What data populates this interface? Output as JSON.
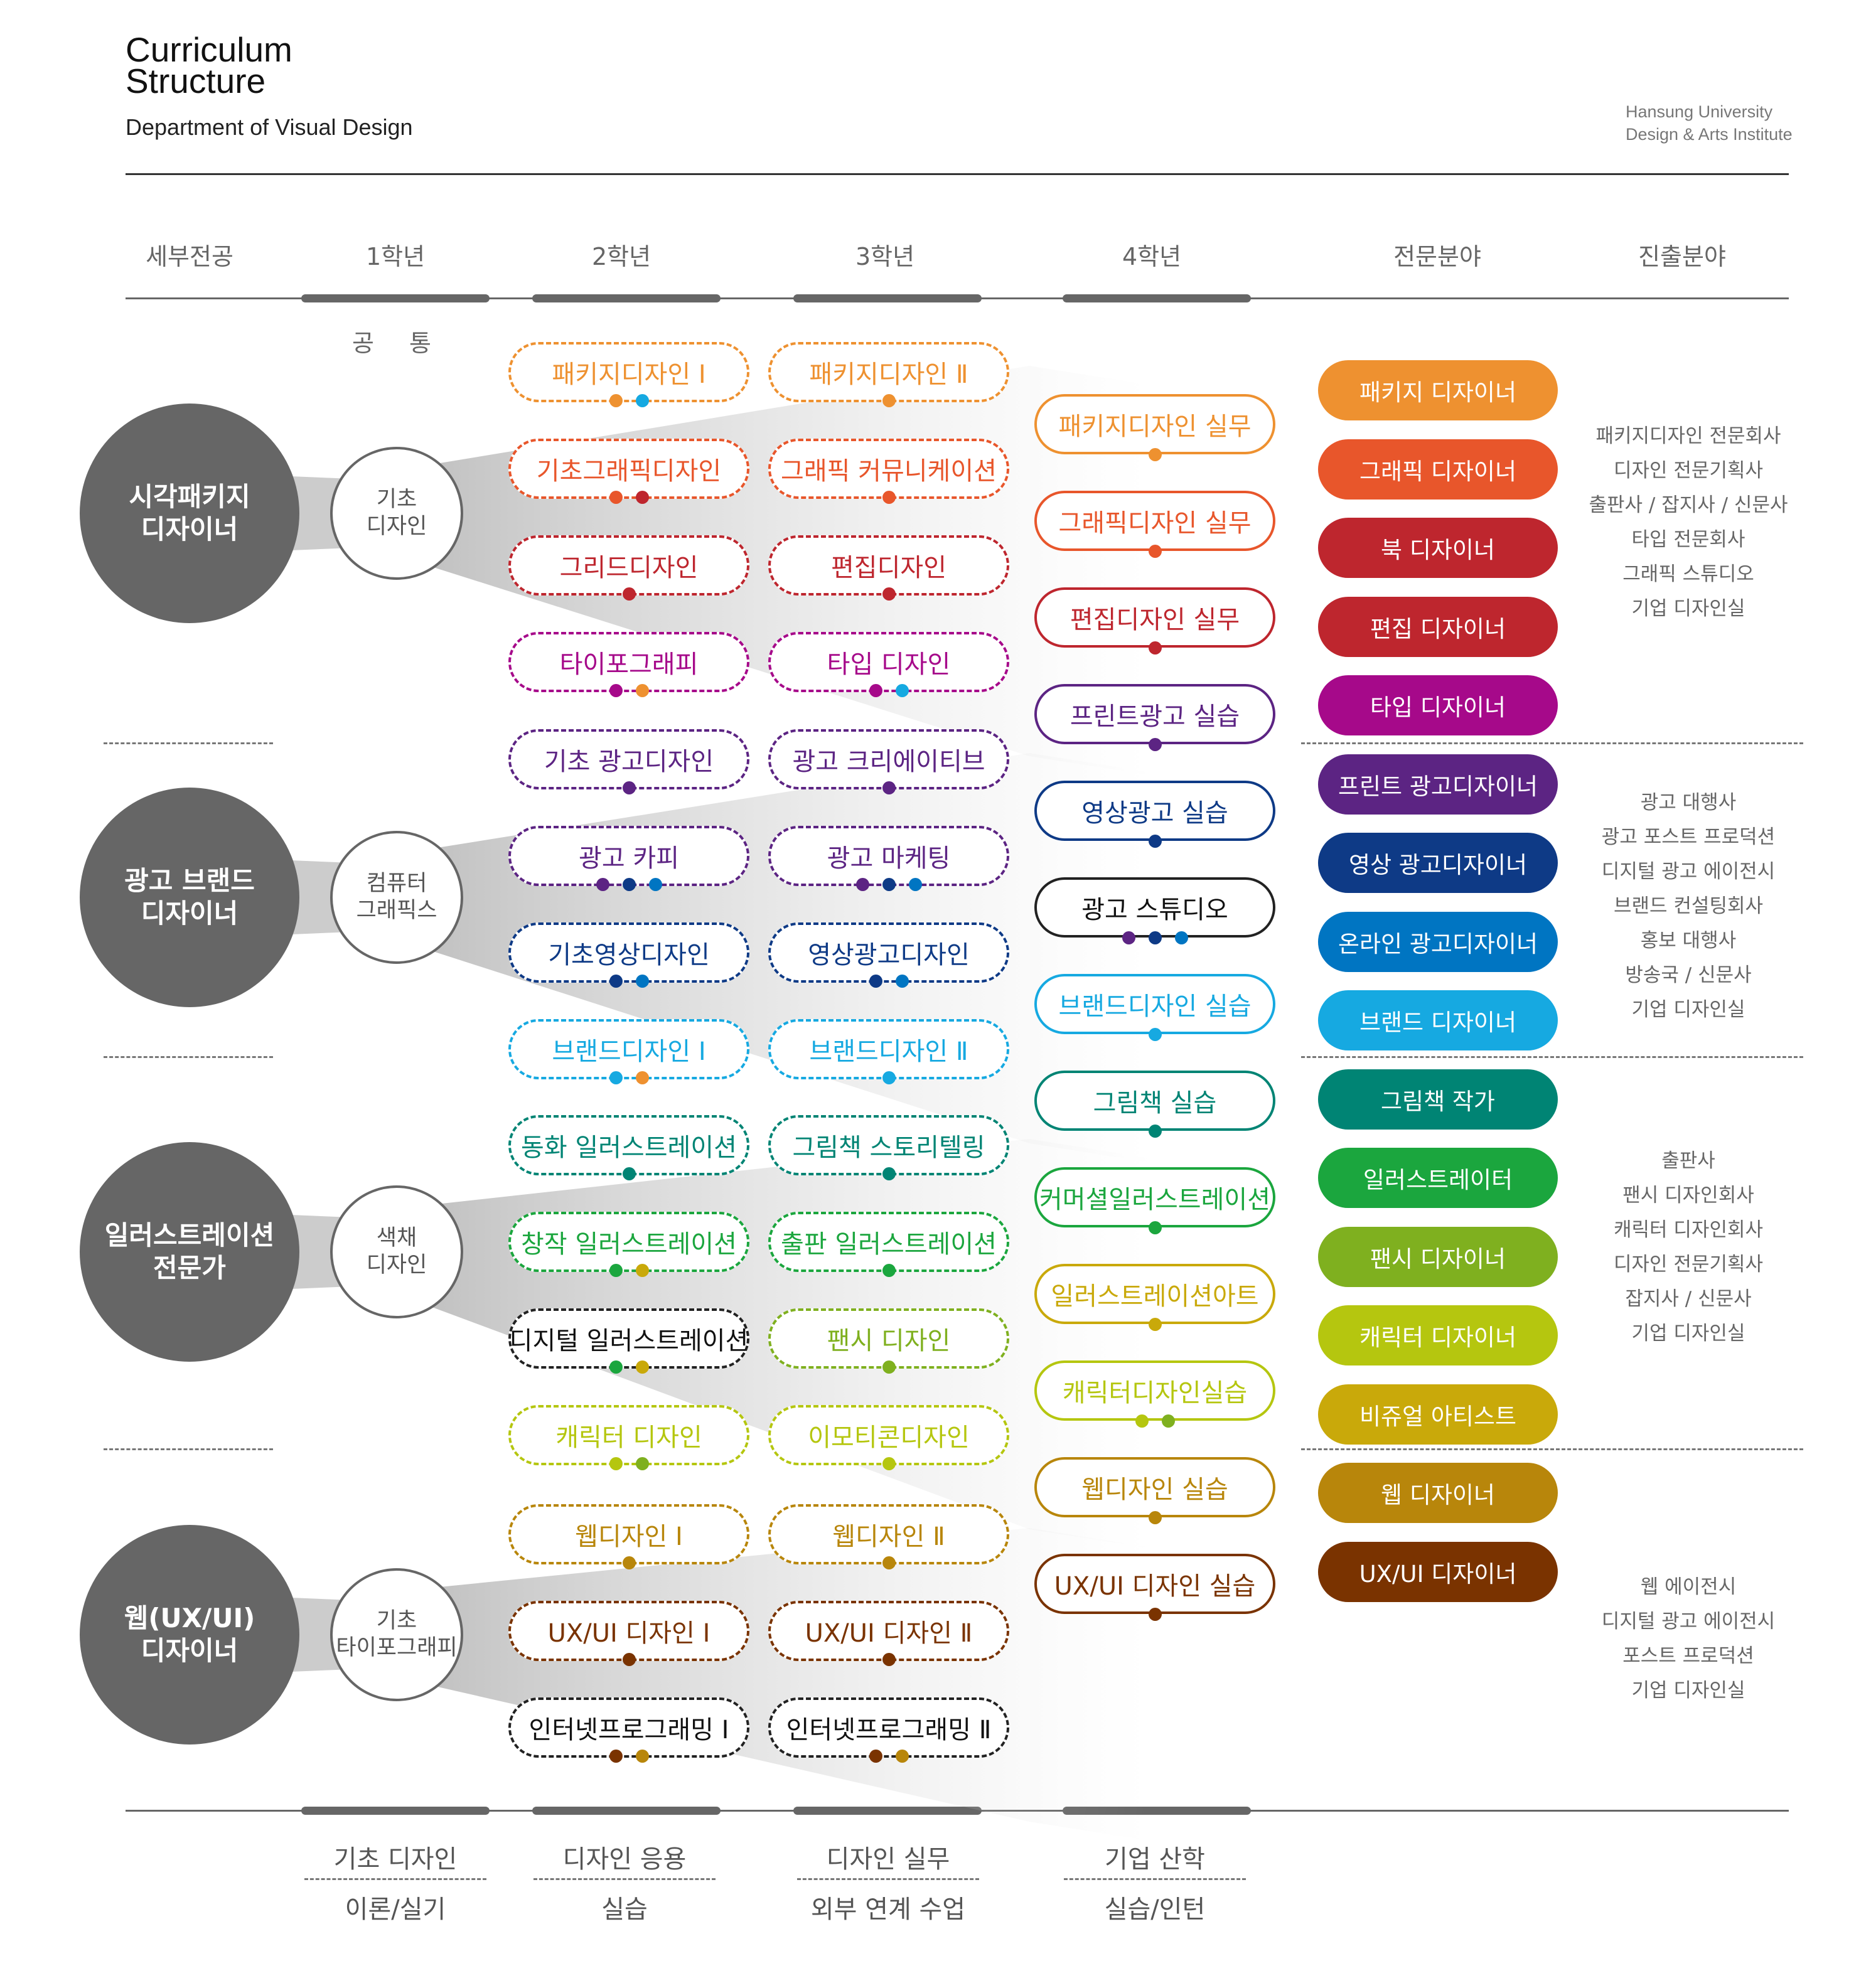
{
  "header": {
    "title_line1": "Curriculum",
    "title_line2": "Structure",
    "subtitle": "Department of Visual Design",
    "institution_line1": "Hansung University",
    "institution_line2": "Design & Arts Institute"
  },
  "columns": [
    "세부전공",
    "1학년",
    "2학년",
    "3학년",
    "4학년",
    "전문분야",
    "진출분야"
  ],
  "common_label": "공 통",
  "tracks": [
    {
      "name": "시각패키지\n디자이너",
      "base": "기초\n디자인",
      "year2": [
        {
          "label": "패키지디자인 Ⅰ",
          "color": "#EE9130",
          "dots": [
            "#EE9130",
            "#16A9E1"
          ]
        },
        {
          "label": "기초그래픽디자인",
          "color": "#E8562B",
          "dots": [
            "#E8562B",
            "#BE262E"
          ]
        },
        {
          "label": "그리드디자인",
          "color": "#BE262E",
          "dots": [
            "#BE262E"
          ]
        },
        {
          "label": "타이포그래피",
          "color": "#A6098A",
          "dots": [
            "#A6098A",
            "#EE9130"
          ]
        }
      ],
      "year3": [
        {
          "label": "패키지디자인 Ⅱ",
          "color": "#EE9130",
          "dots": [
            "#EE9130"
          ]
        },
        {
          "label": "그래픽 커뮤니케이션",
          "color": "#E8562B",
          "dots": [
            "#E8562B"
          ]
        },
        {
          "label": "편집디자인",
          "color": "#BE262E",
          "dots": [
            "#BE262E"
          ]
        },
        {
          "label": "타입 디자인",
          "color": "#A6098A",
          "dots": [
            "#A6098A",
            "#16A9E1"
          ]
        }
      ]
    },
    {
      "name": "광고 브랜드\n디자이너",
      "base": "컴퓨터\n그래픽스",
      "year2": [
        {
          "label": "기초 광고디자인",
          "color": "#5C2483",
          "dots": [
            "#5C2483"
          ]
        },
        {
          "label": "광고 카피",
          "color": "#5C2483",
          "dots": [
            "#5C2483",
            "#0E3A86",
            "#0075C2"
          ]
        },
        {
          "label": "기초영상디자인",
          "color": "#0E3A86",
          "dots": [
            "#0E3A86",
            "#0075C2"
          ]
        },
        {
          "label": "브랜드디자인 Ⅰ",
          "color": "#16A9E1",
          "dots": [
            "#16A9E1",
            "#EE9130"
          ]
        }
      ],
      "year3": [
        {
          "label": "광고 크리에이티브",
          "color": "#5C2483",
          "dots": [
            "#5C2483"
          ]
        },
        {
          "label": "광고 마케팅",
          "color": "#5C2483",
          "dots": [
            "#5C2483",
            "#0E3A86",
            "#0075C2"
          ]
        },
        {
          "label": "영상광고디자인",
          "color": "#0E3A86",
          "dots": [
            "#0E3A86",
            "#0075C2"
          ]
        },
        {
          "label": "브랜드디자인 Ⅱ",
          "color": "#16A9E1",
          "dots": [
            "#16A9E1"
          ]
        }
      ]
    },
    {
      "name": "일러스트레이션\n전문가",
      "base": "색채\n디자인",
      "year2": [
        {
          "label": "동화 일러스트레이션",
          "color": "#008474",
          "dots": [
            "#008474"
          ]
        },
        {
          "label": "창작 일러스트레이션",
          "color": "#1BA63E",
          "dots": [
            "#1BA63E",
            "#C9A90A"
          ]
        },
        {
          "label": "디지털 일러스트레이션",
          "color": "#222222",
          "dots": [
            "#1BA63E",
            "#C9A90A"
          ]
        },
        {
          "label": "캐릭터 디자인",
          "color": "#B5C60F",
          "dots": [
            "#B5C60F",
            "#7FB01F"
          ]
        }
      ],
      "year3": [
        {
          "label": "그림책 스토리텔링",
          "color": "#008474",
          "dots": [
            "#008474"
          ]
        },
        {
          "label": "출판 일러스트레이션",
          "color": "#1BA63E",
          "dots": [
            "#1BA63E"
          ]
        },
        {
          "label": "팬시 디자인",
          "color": "#7FB01F",
          "dots": [
            "#7FB01F"
          ]
        },
        {
          "label": "이모티콘디자인",
          "color": "#B5C60F",
          "dots": [
            "#B5C60F"
          ]
        }
      ]
    },
    {
      "name": "웹(UX/UI)\n디자이너",
      "base": "기초\n타이포그래피",
      "year2": [
        {
          "label": "웹디자인 Ⅰ",
          "color": "#B8860B",
          "dots": [
            "#B8860B"
          ]
        },
        {
          "label": "UX/UI 디자인 Ⅰ",
          "color": "#7A3300",
          "dots": [
            "#7A3300"
          ]
        },
        {
          "label": "인터넷프로그래밍 Ⅰ",
          "color": "#222222",
          "dots": [
            "#7A3300",
            "#B8860B"
          ]
        }
      ],
      "year3": [
        {
          "label": "웹디자인 Ⅱ",
          "color": "#B8860B",
          "dots": [
            "#B8860B"
          ]
        },
        {
          "label": "UX/UI 디자인 Ⅱ",
          "color": "#7A3300",
          "dots": [
            "#7A3300"
          ]
        },
        {
          "label": "인터넷프로그래밍 Ⅱ",
          "color": "#222222",
          "dots": [
            "#7A3300",
            "#B8860B"
          ]
        }
      ]
    }
  ],
  "year4": [
    {
      "label": "패키지디자인 실무",
      "color": "#EE9130",
      "dots": [
        "#EE9130"
      ]
    },
    {
      "label": "그래픽디자인 실무",
      "color": "#E8562B",
      "dots": [
        "#E8562B"
      ]
    },
    {
      "label": "편집디자인 실무",
      "color": "#BE262E",
      "dots": [
        "#BE262E"
      ]
    },
    {
      "label": "프린트광고 실습",
      "color": "#5C2483",
      "dots": [
        "#5C2483"
      ]
    },
    {
      "label": "영상광고 실습",
      "color": "#0E3A86",
      "dots": [
        "#0E3A86"
      ]
    },
    {
      "label": "광고 스튜디오",
      "color": "#222222",
      "dots": [
        "#5C2483",
        "#0E3A86",
        "#0075C2"
      ]
    },
    {
      "label": "브랜드디자인 실습",
      "color": "#16A9E1",
      "dots": [
        "#16A9E1"
      ]
    },
    {
      "label": "그림책 실습",
      "color": "#008474",
      "dots": [
        "#008474"
      ]
    },
    {
      "label": "커머셜일러스트레이션",
      "color": "#1BA63E",
      "dots": [
        "#1BA63E"
      ]
    },
    {
      "label": "일러스트레이션아트",
      "color": "#C9A90A",
      "dots": [
        "#C9A90A"
      ]
    },
    {
      "label": "캐릭터디자인실습",
      "color": "#B5C60F",
      "dots": [
        "#B5C60F",
        "#7FB01F"
      ]
    },
    {
      "label": "웹디자인 실습",
      "color": "#B8860B",
      "dots": [
        "#B8860B"
      ]
    },
    {
      "label": "UX/UI 디자인 실습",
      "color": "#7A3300",
      "dots": [
        "#7A3300"
      ]
    }
  ],
  "jobs": [
    {
      "label": "패키지 디자이너",
      "color": "#EE9130"
    },
    {
      "label": "그래픽 디자이너",
      "color": "#E8562B"
    },
    {
      "label": "북 디자이너",
      "color": "#BE262E"
    },
    {
      "label": "편집 디자이너",
      "color": "#BE262E"
    },
    {
      "label": "타입 디자이너",
      "color": "#A6098A"
    },
    {
      "label": "프린트 광고디자이너",
      "color": "#5C2483"
    },
    {
      "label": "영상 광고디자이너",
      "color": "#0E3A86"
    },
    {
      "label": "온라인 광고디자이너",
      "color": "#0075C2"
    },
    {
      "label": "브랜드 디자이너",
      "color": "#16A9E1"
    },
    {
      "label": "그림책 작가",
      "color": "#008474"
    },
    {
      "label": "일러스트레이터",
      "color": "#1BA63E"
    },
    {
      "label": "팬시 디자이너",
      "color": "#7FB01F"
    },
    {
      "label": "캐릭터 디자이너",
      "color": "#B5C60F"
    },
    {
      "label": "비쥬얼 아티스트",
      "color": "#C9A90A"
    },
    {
      "label": "웹 디자이너",
      "color": "#B8860B"
    },
    {
      "label": "UX/UI 디자이너",
      "color": "#7A3300"
    }
  ],
  "careers": [
    [
      "패키지디자인 전문회사",
      "디자인 전문기획사",
      "출판사 / 잡지사 / 신문사",
      "타입 전문회사",
      "그래픽 스튜디오",
      "기업 디자인실"
    ],
    [
      "광고 대행사",
      "광고 포스트 프로덕션",
      "디지털 광고 에이전시",
      "브랜드 컨설팅회사",
      "홍보 대행사",
      "방송국 / 신문사",
      "기업 디자인실"
    ],
    [
      "출판사",
      "팬시 디자인회사",
      "캐릭터 디자인회사",
      "디자인 전문기획사",
      "잡지사 / 신문사",
      "기업 디자인실"
    ],
    [
      "웹 에이전시",
      "디지털 광고 에이전시",
      "포스트 프로덕션",
      "기업 디자인실"
    ]
  ],
  "footer": [
    {
      "top": "기초 디자인",
      "bottom": "이론/실기"
    },
    {
      "top": "디자인 응용",
      "bottom": "실습"
    },
    {
      "top": "디자인 실무",
      "bottom": "외부 연계 수업"
    },
    {
      "top": "기업 산학",
      "bottom": "실습/인턴"
    }
  ]
}
